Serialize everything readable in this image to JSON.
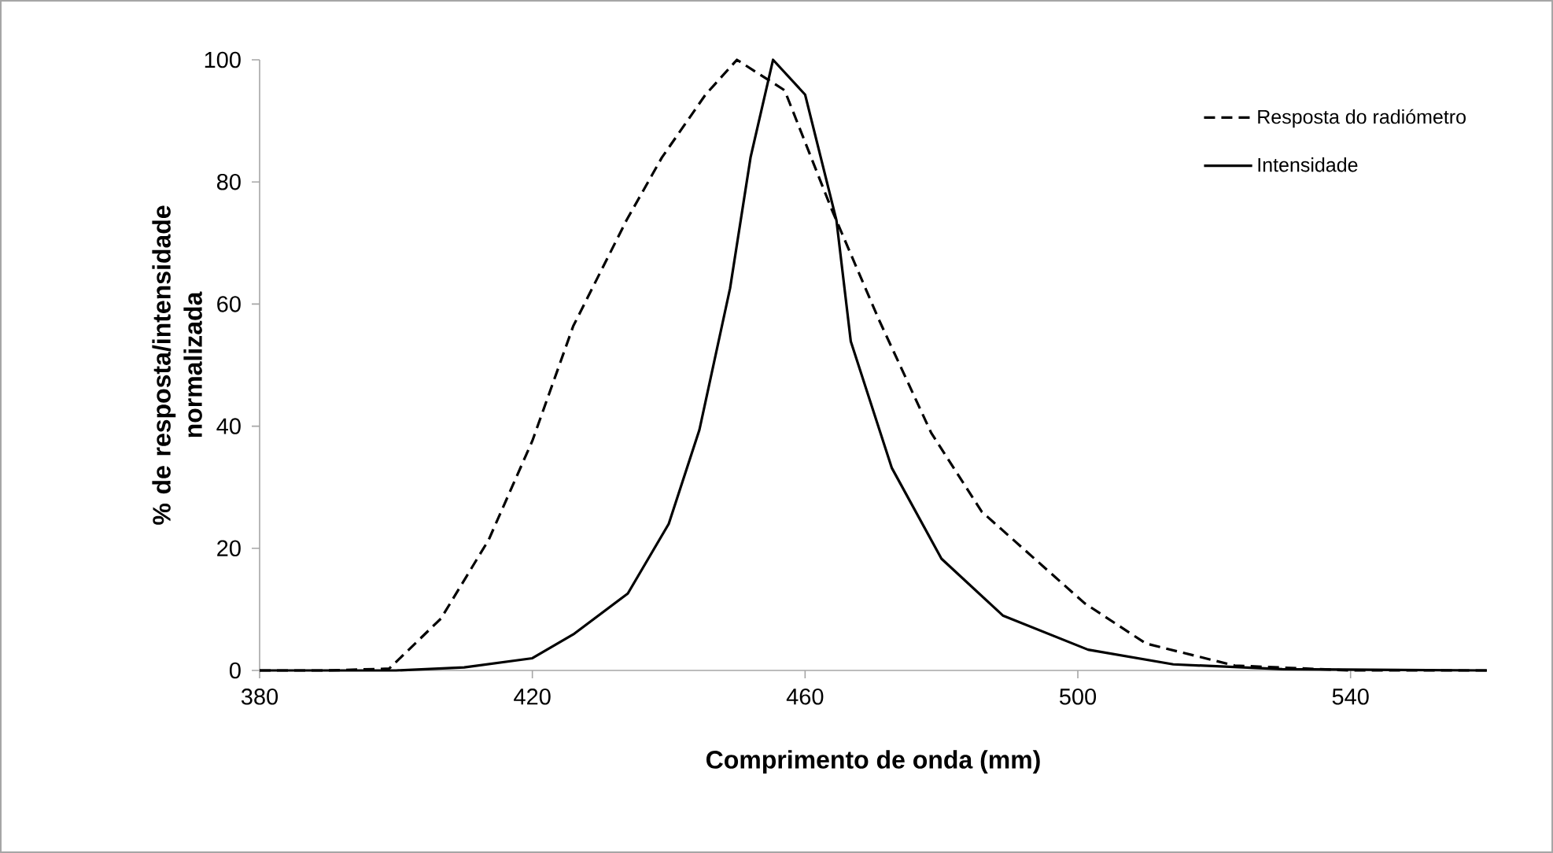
{
  "chart_data": {
    "type": "line",
    "xlabel": "Comprimento de onda (mm)",
    "ylabel": "% de resposta/intensidade normalizada",
    "xlim": [
      380,
      560
    ],
    "xticks": [
      380,
      420,
      460,
      500,
      540
    ],
    "ylim": [
      0,
      100
    ],
    "yticks": [
      0,
      20,
      40,
      60,
      80,
      100
    ],
    "grid": false,
    "legend": "top right",
    "marker": "none",
    "series": [
      {
        "name": "Resposta do radiómetro",
        "color": "#000000",
        "line_style": "dashed",
        "x": [
          380,
          390,
          399,
          406.6,
          413.6,
          420,
          426,
          433.8,
          439,
          445.4,
          450,
          457,
          463.9,
          470.8,
          478.5,
          485.9,
          501,
          510,
          523,
          540,
          560
        ],
        "values": [
          0,
          0,
          0.3,
          8.5,
          21.4,
          37.6,
          56.4,
          73.7,
          84,
          94.3,
          100,
          95,
          75.5,
          57.5,
          38.9,
          26,
          11,
          4.4,
          0.8,
          0,
          0
        ]
      },
      {
        "name": "Intensidade",
        "color": "#000000",
        "line_style": "solid",
        "x": [
          380,
          400,
          410,
          420,
          426,
          434,
          440,
          444.5,
          449,
          452,
          455.3,
          460,
          464.6,
          466.7,
          472.7,
          480,
          489,
          501.5,
          514,
          530,
          560
        ],
        "values": [
          0,
          0,
          0.5,
          2,
          5.9,
          12.6,
          24,
          39.4,
          62.6,
          84,
          100,
          94.3,
          73.7,
          53.9,
          33.2,
          18.3,
          9,
          3.4,
          1,
          0.2,
          0
        ]
      }
    ]
  }
}
